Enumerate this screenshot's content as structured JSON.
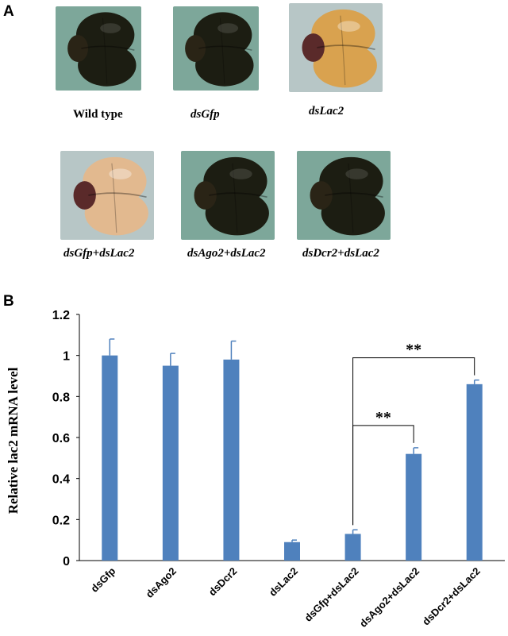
{
  "panel_a": {
    "label": "A",
    "photos": [
      {
        "caption": "Wild type",
        "italic": false,
        "tint": "dark"
      },
      {
        "caption": "dsGfp",
        "italic": true,
        "tint": "dark"
      },
      {
        "caption": "dsLac2",
        "italic": true,
        "tint": "amber"
      },
      {
        "caption": "dsGfp+dsLac2",
        "italic": true,
        "tint": "pale"
      },
      {
        "caption": "dsAgo2+dsLac2",
        "italic": true,
        "tint": "dark"
      },
      {
        "caption": "dsDcr2+dsLac2",
        "italic": true,
        "tint": "dark"
      }
    ],
    "colors": {
      "photo_bg_green": "#7da79a",
      "photo_bg_pale": "#b7c6c6",
      "dark_shell": "#1c1d12",
      "amber_shell": "#d9a24f",
      "pale_shell": "#e2b98f"
    }
  },
  "panel_b": {
    "label": "B",
    "chart_data": {
      "type": "bar",
      "categories": [
        "dsGfp",
        "dsAgo2",
        "dsDcr2",
        "dsLac2",
        "dsGfp+dsLac2",
        "dsAgo2+dsLac2",
        "dsDcr2+dsLac2"
      ],
      "values": [
        1.0,
        0.95,
        0.98,
        0.09,
        0.13,
        0.52,
        0.86
      ],
      "errors": [
        0.08,
        0.06,
        0.09,
        0.01,
        0.02,
        0.03,
        0.02
      ],
      "ylabel": "Relative lac2 mRNA level",
      "ylim": [
        0,
        1.2
      ],
      "yticks": [
        "0",
        "0.2",
        "0.4",
        "0.6",
        "0.8",
        "1",
        "1.2"
      ],
      "bar_color": "#4f81bd",
      "grid": false,
      "significance": [
        {
          "from": 4,
          "to": 5,
          "label": "**"
        },
        {
          "from": 4,
          "to": 6,
          "label": "**"
        }
      ]
    }
  }
}
